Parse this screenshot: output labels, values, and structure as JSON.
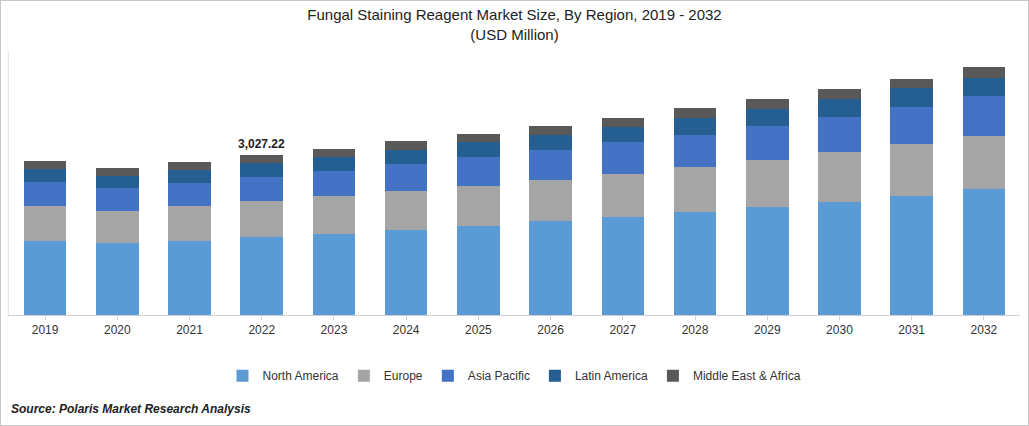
{
  "chart_data": {
    "type": "bar",
    "title": "Fungal Staining Reagent Market Size, By Region, 2019 - 2032",
    "subtitle": "(USD Million)",
    "source": "Source: Polaris Market Research Analysis",
    "categories": [
      "2019",
      "2020",
      "2021",
      "2022",
      "2023",
      "2024",
      "2025",
      "2026",
      "2027",
      "2028",
      "2029",
      "2030",
      "2031",
      "2032"
    ],
    "series": [
      {
        "name": "North America",
        "color": "#5b9bd5",
        "values": [
          1411,
          1356,
          1411,
          1486,
          1541,
          1616,
          1690,
          1783,
          1857,
          1950,
          2043,
          2136,
          2247,
          2377
        ]
      },
      {
        "name": "Europe",
        "color": "#a5a5a5",
        "values": [
          650,
          613,
          650,
          668,
          706,
          724,
          761,
          780,
          817,
          854,
          891,
          947,
          984,
          1021
        ]
      },
      {
        "name": "Asia Pacific",
        "color": "#4472c4",
        "values": [
          464,
          427,
          446,
          464,
          483,
          520,
          539,
          557,
          594,
          613,
          650,
          668,
          706,
          743
        ]
      },
      {
        "name": "Latin America",
        "color": "#255e91",
        "values": [
          241,
          241,
          241,
          260,
          260,
          260,
          279,
          297,
          297,
          316,
          316,
          334,
          353,
          353
        ]
      },
      {
        "name": "Middle East & Africa",
        "color": "#595959",
        "values": [
          149,
          149,
          149,
          149,
          149,
          167,
          167,
          167,
          167,
          186,
          186,
          186,
          186,
          204
        ]
      }
    ],
    "annotations": [
      {
        "category": "2022",
        "value": 3027.22,
        "text": "3,027.22"
      }
    ],
    "ylim": [
      0,
      5000
    ],
    "yticks": [],
    "stacked": true,
    "grid": false,
    "legend": "bottom",
    "tick_labels": "x",
    "data_labels": false
  }
}
